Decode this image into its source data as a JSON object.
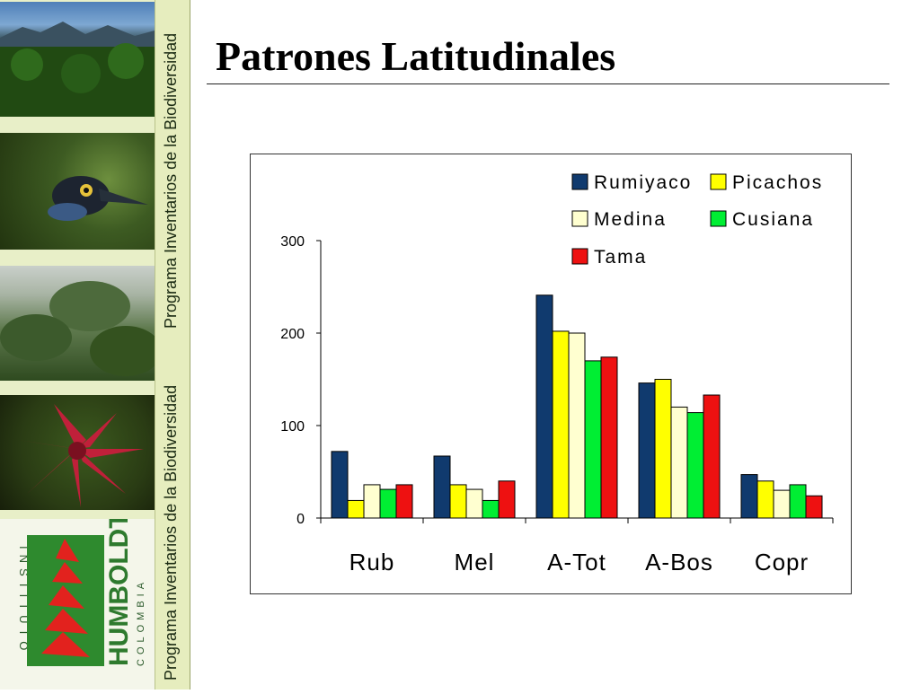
{
  "slide": {
    "title": "Patrones Latitudinales",
    "side_text_top": "Programa Inventarios de la Biodiversidad",
    "side_text_bottom": "Programa Inventarios de la Biodiversidad",
    "logo": {
      "left_letters": "INSTITUTO",
      "brand": "HUMBOLDT",
      "country": "COLOMBIA"
    }
  },
  "colors": {
    "Rumiyaco": "#103a6e",
    "Picachos": "#ffff00",
    "Medina": "#ffffd0",
    "Cusiana": "#00ee33",
    "Tama": "#ee1111"
  },
  "chart_data": {
    "type": "bar",
    "categories": [
      "Rub",
      "Mel",
      "A-Tot",
      "A-Bos",
      "Copr"
    ],
    "series": [
      {
        "name": "Rumiyaco",
        "values": [
          72,
          67,
          241,
          146,
          47
        ]
      },
      {
        "name": "Picachos",
        "values": [
          19,
          36,
          202,
          150,
          40
        ]
      },
      {
        "name": "Medina",
        "values": [
          36,
          31,
          200,
          120,
          30
        ]
      },
      {
        "name": "Cusiana",
        "values": [
          31,
          19,
          170,
          114,
          36
        ]
      },
      {
        "name": "Tama",
        "values": [
          36,
          40,
          174,
          133,
          24
        ]
      }
    ],
    "y_ticks": [
      "300",
      "200",
      "100",
      "0"
    ],
    "ylim": [
      0,
      300
    ],
    "legend_position": "top-right",
    "grid": false
  }
}
